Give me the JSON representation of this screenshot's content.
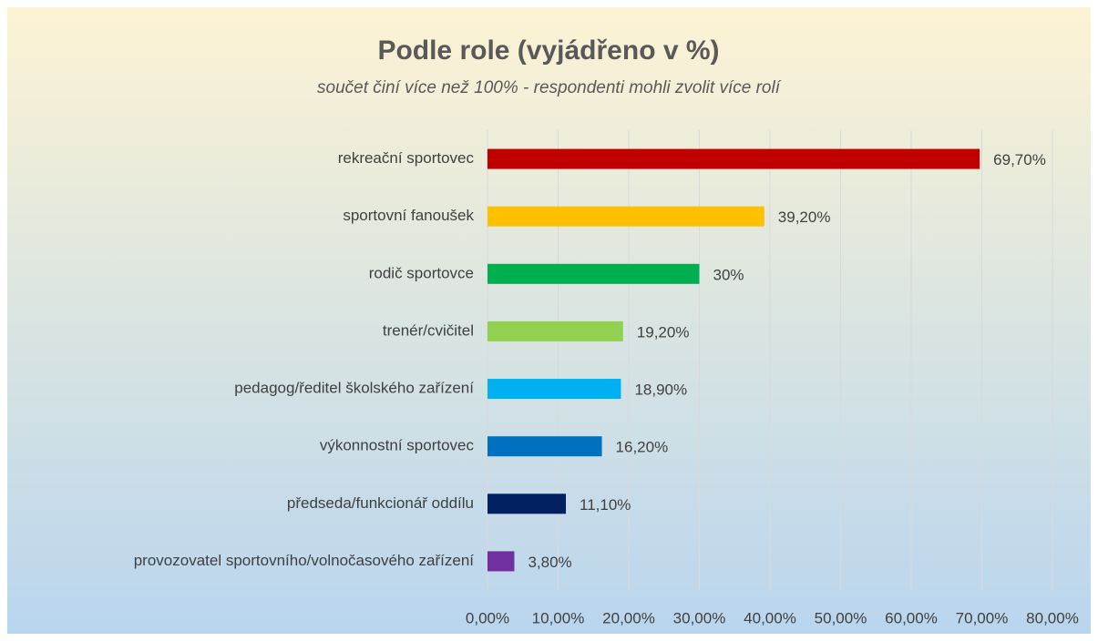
{
  "chart_data": {
    "type": "bar",
    "orientation": "horizontal",
    "title": "Podle role (vyjádřeno v %)",
    "subtitle": "součet činí více než 100% - respondenti mohli zvolit více rolí",
    "categories": [
      "rekreační sportovec",
      "sportovní fanoušek",
      "rodič sportovce",
      "trenér/cvičitel",
      "pedagog/ředitel školského zařízení",
      "výkonnostní sportovec",
      "předseda/funkcionář oddílu",
      "provozovatel sportovního/volnočasového zařízení"
    ],
    "values": [
      69.7,
      39.2,
      30,
      19.2,
      18.9,
      16.2,
      11.1,
      3.8
    ],
    "value_labels": [
      "69,70%",
      "39,20%",
      "30%",
      "19,20%",
      "18,90%",
      "16,20%",
      "11,10%",
      "3,80%"
    ],
    "colors": [
      "#c00000",
      "#ffc000",
      "#00b050",
      "#92d050",
      "#00b0f0",
      "#0070c0",
      "#002060",
      "#7030a0"
    ],
    "xlim": [
      0,
      80
    ],
    "xticks": [
      {
        "value": 0,
        "label": "0,00%"
      },
      {
        "value": 10,
        "label": "10,00%"
      },
      {
        "value": 20,
        "label": "20,00%"
      },
      {
        "value": 30,
        "label": "30,00%"
      },
      {
        "value": 40,
        "label": "40,00%"
      },
      {
        "value": 50,
        "label": "50,00%"
      },
      {
        "value": 60,
        "label": "60,00%"
      },
      {
        "value": 70,
        "label": "70,00%"
      },
      {
        "value": 80,
        "label": "80,00%"
      }
    ],
    "grid": true
  }
}
